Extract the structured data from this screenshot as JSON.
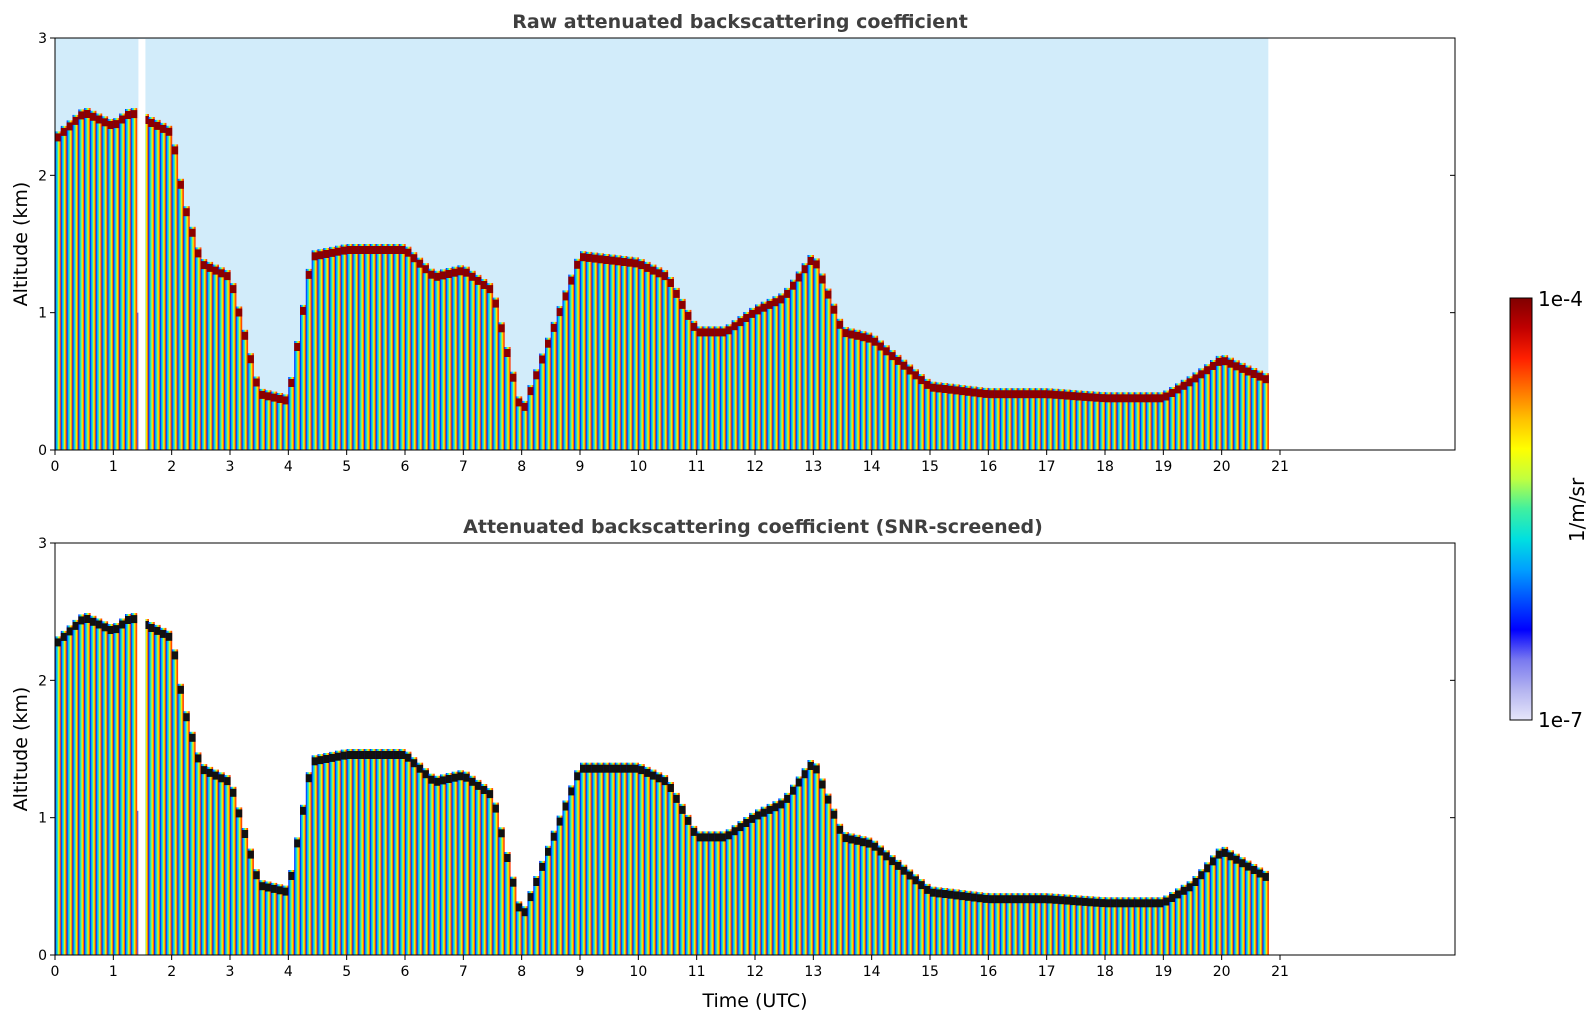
{
  "chart_data": [
    {
      "type": "heatmap",
      "title": "Raw attenuated backscattering coefficient",
      "xlabel": "",
      "ylabel": "Altitude (km)",
      "xlim": [
        0,
        24
      ],
      "ylim": [
        0,
        3
      ],
      "xticks": [
        "0",
        "1",
        "2",
        "3",
        "4",
        "5",
        "6",
        "7",
        "8",
        "9",
        "10",
        "11",
        "12",
        "13",
        "14",
        "15",
        "16",
        "17",
        "18",
        "19",
        "20",
        "21"
      ],
      "yticks": [
        "0",
        "1",
        "2",
        "3"
      ],
      "data_extent_x": [
        0,
        20.8
      ],
      "gap_x": [
        1.43,
        1.55
      ],
      "cloud_top_km": [
        [
          0.0,
          2.3
        ],
        [
          0.5,
          2.5
        ],
        [
          1.0,
          2.4
        ],
        [
          1.3,
          2.5
        ],
        [
          2.0,
          2.35
        ],
        [
          2.2,
          1.85
        ],
        [
          2.5,
          1.4
        ],
        [
          3.0,
          1.3
        ],
        [
          3.5,
          0.45
        ],
        [
          4.0,
          0.4
        ],
        [
          4.4,
          1.45
        ],
        [
          5.0,
          1.5
        ],
        [
          6.0,
          1.5
        ],
        [
          6.5,
          1.3
        ],
        [
          7.0,
          1.35
        ],
        [
          7.5,
          1.2
        ],
        [
          8.0,
          0.3
        ],
        [
          9.0,
          1.45
        ],
        [
          10.0,
          1.4
        ],
        [
          10.5,
          1.3
        ],
        [
          11.0,
          0.9
        ],
        [
          11.5,
          0.9
        ],
        [
          12.0,
          1.05
        ],
        [
          12.5,
          1.15
        ],
        [
          13.0,
          1.45
        ],
        [
          13.5,
          0.9
        ],
        [
          14.0,
          0.85
        ],
        [
          15.0,
          0.5
        ],
        [
          16.0,
          0.45
        ],
        [
          17.0,
          0.45
        ],
        [
          18.0,
          0.42
        ],
        [
          19.0,
          0.42
        ],
        [
          19.5,
          0.55
        ],
        [
          20.0,
          0.7
        ],
        [
          20.8,
          0.55
        ]
      ]
    },
    {
      "type": "heatmap",
      "title": "Attenuated backscattering coefficient (SNR-screened)",
      "xlabel": "Time (UTC)",
      "ylabel": "Altitude (km)",
      "xlim": [
        0,
        24
      ],
      "ylim": [
        0,
        3
      ],
      "xticks": [
        "0",
        "1",
        "2",
        "3",
        "4",
        "5",
        "6",
        "7",
        "8",
        "9",
        "10",
        "11",
        "12",
        "13",
        "14",
        "15",
        "16",
        "17",
        "18",
        "19",
        "20",
        "21"
      ],
      "yticks": [
        "0",
        "1",
        "2",
        "3"
      ],
      "data_extent_x": [
        0,
        20.8
      ],
      "gap_x": [
        1.43,
        1.55
      ],
      "cloud_top_km": [
        [
          0.0,
          2.3
        ],
        [
          0.5,
          2.5
        ],
        [
          1.0,
          2.4
        ],
        [
          1.3,
          2.5
        ],
        [
          2.0,
          2.35
        ],
        [
          2.2,
          1.85
        ],
        [
          2.5,
          1.4
        ],
        [
          3.0,
          1.3
        ],
        [
          3.5,
          0.55
        ],
        [
          4.0,
          0.5
        ],
        [
          4.4,
          1.45
        ],
        [
          5.0,
          1.5
        ],
        [
          6.0,
          1.5
        ],
        [
          6.5,
          1.3
        ],
        [
          7.0,
          1.35
        ],
        [
          7.5,
          1.2
        ],
        [
          8.0,
          0.3
        ],
        [
          9.0,
          1.4
        ],
        [
          10.0,
          1.4
        ],
        [
          10.5,
          1.3
        ],
        [
          11.0,
          0.9
        ],
        [
          11.5,
          0.9
        ],
        [
          12.0,
          1.05
        ],
        [
          12.5,
          1.15
        ],
        [
          13.0,
          1.45
        ],
        [
          13.5,
          0.9
        ],
        [
          14.0,
          0.85
        ],
        [
          15.0,
          0.5
        ],
        [
          16.0,
          0.45
        ],
        [
          17.0,
          0.45
        ],
        [
          18.0,
          0.42
        ],
        [
          19.0,
          0.42
        ],
        [
          19.5,
          0.55
        ],
        [
          20.0,
          0.8
        ],
        [
          20.8,
          0.6
        ]
      ]
    }
  ],
  "colorbar": {
    "label": "1/m/sr",
    "max_label": "1e-4",
    "min_label": "1e-7",
    "range": [
      1e-07,
      0.0001
    ],
    "scale": "log",
    "colors": [
      "#e6e6fa",
      "#b4b4f0",
      "#7878f0",
      "#0000ff",
      "#0050ff",
      "#00a0ff",
      "#00e0e0",
      "#40f0a0",
      "#c0ff40",
      "#ffff00",
      "#ffc000",
      "#ff7000",
      "#ff2000",
      "#c00000",
      "#800000"
    ]
  }
}
